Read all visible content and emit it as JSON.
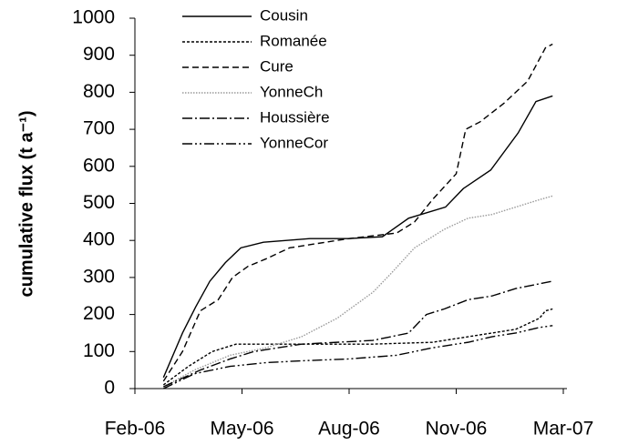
{
  "chart_data": {
    "type": "line",
    "y_label": "cumulative flux (t a⁻¹)",
    "xlim": [
      0,
      360
    ],
    "xticks": [
      {
        "value": 0,
        "label": "Feb-06"
      },
      {
        "value": 90,
        "label": "May-06"
      },
      {
        "value": 180,
        "label": "Aug-06"
      },
      {
        "value": 270,
        "label": "Nov-06"
      },
      {
        "value": 360,
        "label": "Mar-07"
      }
    ],
    "ylim": [
      0,
      1000
    ],
    "yticks": [
      0,
      100,
      200,
      300,
      400,
      500,
      600,
      700,
      800,
      900,
      1000
    ],
    "legend": "upper left",
    "series": [
      {
        "name": "Cousin",
        "color": "#000000",
        "dash": "solid",
        "x": [
          24,
          40,
          51,
          63,
          76,
          89,
          108,
          147,
          179,
          208,
          230,
          261,
          276,
          299,
          322,
          337,
          351
        ],
        "values": [
          30,
          150,
          220,
          290,
          340,
          380,
          395,
          405,
          405,
          410,
          460,
          490,
          540,
          590,
          690,
          775,
          790
        ]
      },
      {
        "name": "Romanée",
        "color": "#000000",
        "dash": "dotted",
        "x": [
          24,
          45,
          65,
          85,
          110,
          150,
          200,
          250,
          270,
          300,
          320,
          340,
          345,
          351
        ],
        "values": [
          10,
          60,
          100,
          120,
          120,
          120,
          120,
          125,
          135,
          150,
          160,
          190,
          210,
          215
        ]
      },
      {
        "name": "Cure",
        "color": "#000000",
        "dash": "dashed",
        "x": [
          24,
          40,
          55,
          70,
          82,
          95,
          110,
          130,
          180,
          220,
          235,
          250,
          270,
          278,
          290,
          310,
          330,
          345,
          351
        ],
        "values": [
          20,
          100,
          210,
          240,
          300,
          330,
          350,
          380,
          405,
          420,
          450,
          510,
          580,
          700,
          720,
          770,
          830,
          920,
          930
        ]
      },
      {
        "name": "YonneCh",
        "color": "#9a9a9a",
        "dash": "fine-dotted",
        "x": [
          24,
          50,
          80,
          110,
          140,
          170,
          200,
          215,
          235,
          260,
          280,
          300,
          320,
          340,
          351
        ],
        "values": [
          5,
          50,
          90,
          110,
          140,
          190,
          260,
          310,
          380,
          430,
          460,
          470,
          490,
          510,
          520
        ]
      },
      {
        "name": "Houssière",
        "color": "#000000",
        "dash": "dash-dot",
        "x": [
          24,
          55,
          80,
          100,
          140,
          170,
          200,
          230,
          245,
          260,
          280,
          300,
          320,
          351
        ],
        "values": [
          5,
          50,
          80,
          100,
          120,
          125,
          130,
          150,
          200,
          215,
          240,
          250,
          270,
          290
        ]
      },
      {
        "name": "YonneCor",
        "color": "#000000",
        "dash": "dash-dot-dot",
        "x": [
          24,
          50,
          80,
          110,
          140,
          180,
          220,
          250,
          280,
          300,
          320,
          340,
          351
        ],
        "values": [
          0,
          40,
          60,
          70,
          75,
          80,
          90,
          110,
          125,
          140,
          150,
          165,
          170
        ]
      }
    ]
  }
}
